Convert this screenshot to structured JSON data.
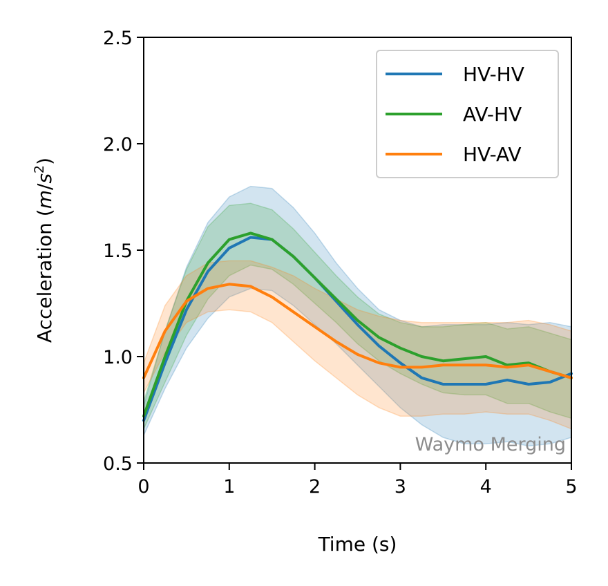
{
  "chart_data": {
    "type": "line",
    "title": "",
    "xlabel": "Time (s)",
    "ylabel_main": "Acceleration (",
    "ylabel_unit_m": "m",
    "ylabel_unit_slash": "/",
    "ylabel_unit_s": "s",
    "ylabel_unit_exp": "2",
    "ylabel_close": ")",
    "xlim": [
      0,
      5
    ],
    "ylim": [
      0.5,
      2.5
    ],
    "xticks": [
      0,
      1,
      2,
      3,
      4,
      5
    ],
    "xtick_labels": [
      "0",
      "1",
      "2",
      "3",
      "4",
      "5"
    ],
    "yticks": [
      0.5,
      1.0,
      1.5,
      2.0,
      2.5
    ],
    "ytick_labels": [
      "0.5",
      "1.0",
      "1.5",
      "2.0",
      "2.5"
    ],
    "legend_position": "top-right",
    "annotation": "Waymo Merging",
    "x": [
      0,
      0.25,
      0.5,
      0.75,
      1.0,
      1.25,
      1.5,
      1.75,
      2.0,
      2.25,
      2.5,
      2.75,
      3.0,
      3.25,
      3.5,
      3.75,
      4.0,
      4.25,
      4.5,
      4.75,
      5.0
    ],
    "series": [
      {
        "name": "HV-HV",
        "color": "#1f77b4",
        "values": [
          0.7,
          0.97,
          1.22,
          1.4,
          1.51,
          1.56,
          1.55,
          1.47,
          1.37,
          1.26,
          1.15,
          1.05,
          0.97,
          0.9,
          0.87,
          0.87,
          0.87,
          0.89,
          0.87,
          0.88,
          0.92
        ],
        "upper": [
          0.77,
          1.12,
          1.42,
          1.63,
          1.75,
          1.8,
          1.79,
          1.7,
          1.58,
          1.44,
          1.32,
          1.22,
          1.17,
          1.14,
          1.15,
          1.15,
          1.15,
          1.16,
          1.15,
          1.16,
          1.14
        ],
        "lower": [
          0.63,
          0.85,
          1.04,
          1.18,
          1.28,
          1.32,
          1.31,
          1.24,
          1.15,
          1.06,
          0.96,
          0.86,
          0.76,
          0.68,
          0.62,
          0.59,
          0.59,
          0.6,
          0.58,
          0.59,
          0.62
        ]
      },
      {
        "name": "AV-HV",
        "color": "#2ca02c",
        "values": [
          0.72,
          1.0,
          1.26,
          1.44,
          1.55,
          1.58,
          1.55,
          1.47,
          1.37,
          1.27,
          1.17,
          1.09,
          1.04,
          1.0,
          0.98,
          0.99,
          1.0,
          0.96,
          0.97,
          0.93,
          0.9
        ],
        "upper": [
          0.79,
          1.12,
          1.41,
          1.61,
          1.71,
          1.72,
          1.69,
          1.6,
          1.49,
          1.38,
          1.28,
          1.2,
          1.16,
          1.14,
          1.14,
          1.15,
          1.16,
          1.13,
          1.14,
          1.11,
          1.08
        ],
        "lower": [
          0.66,
          0.88,
          1.1,
          1.27,
          1.38,
          1.43,
          1.41,
          1.34,
          1.25,
          1.16,
          1.06,
          0.98,
          0.92,
          0.87,
          0.83,
          0.82,
          0.82,
          0.78,
          0.78,
          0.74,
          0.71
        ]
      },
      {
        "name": "HV-AV",
        "color": "#ff7f0e",
        "values": [
          0.9,
          1.12,
          1.26,
          1.32,
          1.34,
          1.33,
          1.28,
          1.21,
          1.14,
          1.07,
          1.01,
          0.97,
          0.95,
          0.95,
          0.96,
          0.96,
          0.96,
          0.95,
          0.96,
          0.93,
          0.9
        ],
        "upper": [
          0.97,
          1.24,
          1.38,
          1.44,
          1.45,
          1.45,
          1.42,
          1.38,
          1.32,
          1.27,
          1.22,
          1.19,
          1.17,
          1.16,
          1.16,
          1.16,
          1.16,
          1.16,
          1.17,
          1.15,
          1.12
        ],
        "lower": [
          0.83,
          1.02,
          1.16,
          1.21,
          1.22,
          1.21,
          1.16,
          1.07,
          0.98,
          0.9,
          0.82,
          0.76,
          0.72,
          0.72,
          0.73,
          0.73,
          0.74,
          0.73,
          0.73,
          0.7,
          0.66
        ]
      }
    ]
  }
}
